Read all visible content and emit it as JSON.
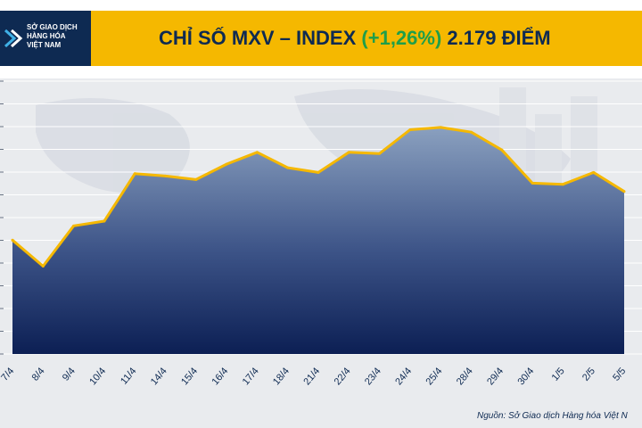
{
  "header": {
    "logo_lines": [
      "SỞ GIAO DỊCH",
      "HÀNG HÓA",
      "VIỆT NAM"
    ],
    "title_main": "CHỈ SỐ MXV – INDEX",
    "title_change": "(+1,26%)",
    "title_value": "2.179 ĐIỂM"
  },
  "source": "Nguồn: Sở Giao dịch Hàng hóa Việt N",
  "colors": {
    "banner": "#f5b800",
    "logo_bg": "#0e2a52",
    "title": "#0e2a52",
    "change": "#1f9e4a",
    "line": "#f5b800",
    "area_top": "#8aa0bf",
    "area_bottom": "#0c1f54"
  },
  "chart_data": {
    "type": "area",
    "title": "CHỈ SỐ MXV – INDEX (+1,26%) 2.179 ĐIỂM",
    "categories": [
      "7/4",
      "8/4",
      "9/4",
      "10/4",
      "11/4",
      "14/4",
      "15/4",
      "16/4",
      "17/4",
      "18/4",
      "21/4",
      "22/4",
      "23/4",
      "24/4",
      "25/4",
      "28/4",
      "29/4",
      "30/4",
      "1/5",
      "2/5",
      "5/5"
    ],
    "series": [
      {
        "values": [
          0.48,
          0.37,
          0.54,
          0.56,
          0.76,
          0.75,
          0.735,
          0.8,
          0.85,
          0.785,
          0.765,
          0.85,
          0.845,
          0.945,
          0.955,
          0.935,
          0.86,
          0.72,
          0.715,
          0.765,
          0.685
        ]
      }
    ],
    "ylim": [
      0,
      1.15
    ],
    "grid": true,
    "legend": "none"
  }
}
